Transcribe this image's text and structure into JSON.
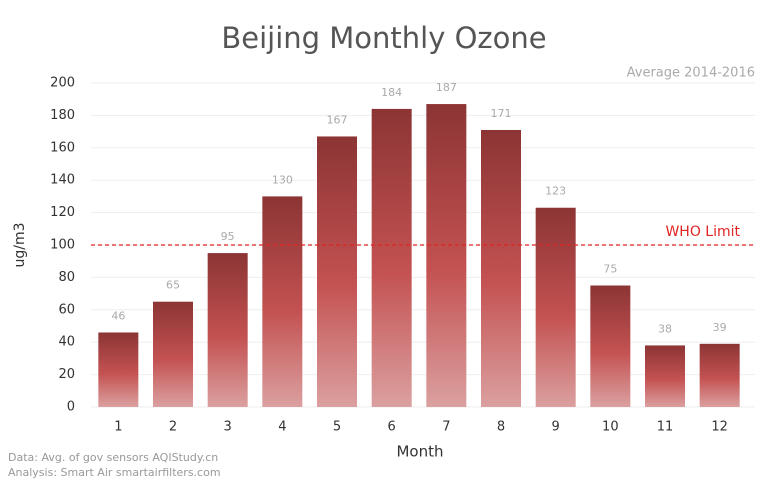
{
  "chart_data": {
    "type": "bar",
    "title": "Beijing Monthly Ozone",
    "subtitle": "Average 2014-2016",
    "x_label": "Month",
    "y_label": "ug/m3",
    "categories": [
      "1",
      "2",
      "3",
      "4",
      "5",
      "6",
      "7",
      "8",
      "9",
      "10",
      "11",
      "12"
    ],
    "values": [
      46,
      65,
      95,
      130,
      167,
      184,
      187,
      171,
      123,
      75,
      38,
      39
    ],
    "gradient": [
      "#8c3434",
      "#c45252",
      "#dba0a0"
    ],
    "ylim": [
      0,
      200
    ],
    "yticks": [
      0,
      20,
      40,
      60,
      80,
      100,
      120,
      140,
      160,
      180,
      200
    ],
    "grid": true,
    "reference_line": {
      "value": 100,
      "label": "WHO Limit",
      "color": "#e02424"
    },
    "notes": [
      "Data: Avg. of gov sensors AQIStudy.cn",
      "Analysis: Smart Air smartairfilters.com"
    ]
  }
}
